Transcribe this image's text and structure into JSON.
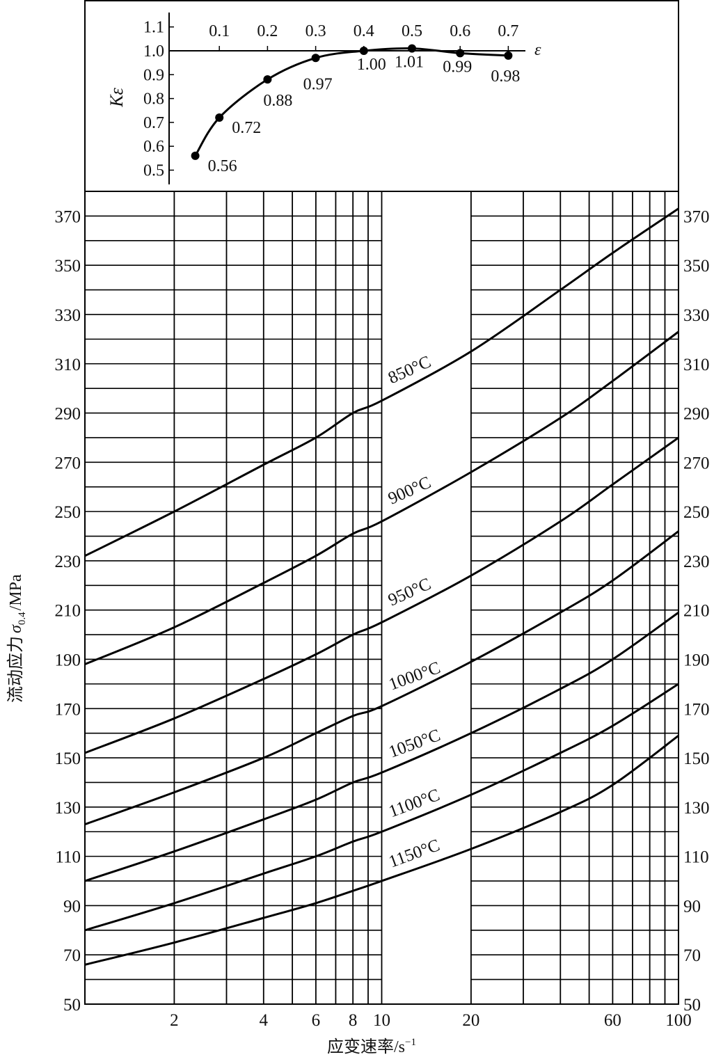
{
  "chart_data": [
    {
      "type": "line",
      "title": "",
      "xlabel": "ε",
      "ylabel": "Kε",
      "xlim": [
        0,
        0.75
      ],
      "ylim": [
        0.45,
        1.15
      ],
      "x_ticks": [
        "0.1",
        "0.2",
        "0.3",
        "0.4",
        "0.5",
        "0.6",
        "0.7"
      ],
      "x_tick_values": [
        0.1,
        0.2,
        0.3,
        0.4,
        0.5,
        0.6,
        0.7
      ],
      "y_ticks": [
        "0.5",
        "0.6",
        "0.7",
        "0.8",
        "0.9",
        "1.0",
        "1.1"
      ],
      "y_tick_values": [
        0.5,
        0.6,
        0.7,
        0.8,
        0.9,
        1.0,
        1.1
      ],
      "points": [
        {
          "x": 0.05,
          "y": 0.56,
          "label": "0.56"
        },
        {
          "x": 0.1,
          "y": 0.72,
          "label": "0.72"
        },
        {
          "x": 0.2,
          "y": 0.88,
          "label": "0.88"
        },
        {
          "x": 0.3,
          "y": 0.97,
          "label": "0.97"
        },
        {
          "x": 0.4,
          "y": 1.0,
          "label": "1.00"
        },
        {
          "x": 0.5,
          "y": 1.01,
          "label": "1.01"
        },
        {
          "x": 0.6,
          "y": 0.99,
          "label": "0.99"
        },
        {
          "x": 0.7,
          "y": 0.98,
          "label": "0.98"
        }
      ],
      "grid": false
    },
    {
      "type": "line",
      "title": "",
      "xlabel": "应变速率/s",
      "xlabel_superscript": "−1",
      "ylabel": "流动应力",
      "ylabel_symbol": "σ",
      "ylabel_subscript": "0.4",
      "ylabel_unit": "/MPa",
      "x_scale": "log",
      "xlim": [
        1,
        100
      ],
      "ylim": [
        50,
        380
      ],
      "x_ticks": [
        "2",
        "4",
        "6",
        "8",
        "10",
        "20",
        "60",
        "100"
      ],
      "x_tick_values": [
        2,
        4,
        6,
        8,
        10,
        20,
        60,
        100
      ],
      "y_ticks": [
        "50",
        "70",
        "90",
        "110",
        "130",
        "150",
        "170",
        "190",
        "210",
        "230",
        "250",
        "270",
        "290",
        "310",
        "330",
        "350",
        "370"
      ],
      "y_ticks_right": true,
      "grid": true,
      "x": [
        1,
        2,
        4,
        6,
        8,
        10,
        20,
        40,
        60,
        100
      ],
      "series": [
        {
          "name": "850°C",
          "values": [
            232,
            250,
            269,
            280,
            290,
            295,
            315,
            340,
            355,
            373
          ]
        },
        {
          "name": "900°C",
          "values": [
            188,
            203,
            221,
            232,
            241,
            246,
            266,
            288,
            303,
            323
          ]
        },
        {
          "name": "950°C",
          "values": [
            152,
            166,
            182,
            192,
            200,
            205,
            224,
            246,
            261,
            280
          ]
        },
        {
          "name": "1000°C",
          "values": [
            123,
            136,
            150,
            160,
            167,
            171,
            189,
            209,
            222,
            242
          ]
        },
        {
          "name": "1050°C",
          "values": [
            100,
            112,
            125,
            133,
            140,
            144,
            160,
            178,
            190,
            209
          ]
        },
        {
          "name": "1100°C",
          "values": [
            80,
            91,
            103,
            110,
            116,
            120,
            135,
            152,
            163,
            180
          ]
        },
        {
          "name": "1150°C",
          "values": [
            66,
            75,
            85,
            91,
            96,
            100,
            113,
            128,
            139,
            159
          ]
        }
      ],
      "line_color": "#000000"
    }
  ]
}
